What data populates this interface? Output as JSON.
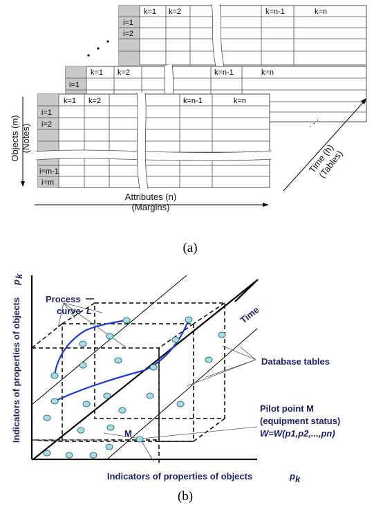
{
  "figure_a": {
    "caption": "(a)",
    "table_headers": [
      "k=1",
      "k=2",
      "k=n-1",
      "k=n"
    ],
    "back_rows": [
      "i=1",
      "i=2"
    ],
    "mid_rows": [
      "i=1"
    ],
    "front_rows_top": [
      "i=1",
      "i=2"
    ],
    "front_rows_bottom": [
      "i=m-1",
      "i=m"
    ],
    "objects_label": "Objects (m)",
    "objects_sub": "(Notes)",
    "attributes_label": "Attributes (n)",
    "attributes_sub": "(Margins)",
    "time_label": "Time (h)",
    "time_sub": "(Tables)",
    "ellipsis": ". . ."
  },
  "figure_b": {
    "caption": "(b)",
    "y_axis_label": "Indicators of properties of objects",
    "y_axis_symbol": "p",
    "y_axis_sub": "k",
    "x_axis_label": "Indicators of properties of objects",
    "x_axis_symbol": "p",
    "x_axis_sub": "k",
    "time_label": "Time",
    "process_curve_1": "Process",
    "process_curve_2": "curve",
    "process_curve_symbol": "L",
    "database_tables": "Database tables",
    "pilot_point_1": "Pilot point M",
    "pilot_point_2": "(equipment status)",
    "pilot_formula": "W=W(p1,p2,...,pn)",
    "point_label": "M",
    "colors": {
      "label": "#1b1f6b",
      "curve": "#1f3ad8",
      "point_fill": "#a9dce3",
      "point_stroke": "#2d6f7f"
    }
  }
}
